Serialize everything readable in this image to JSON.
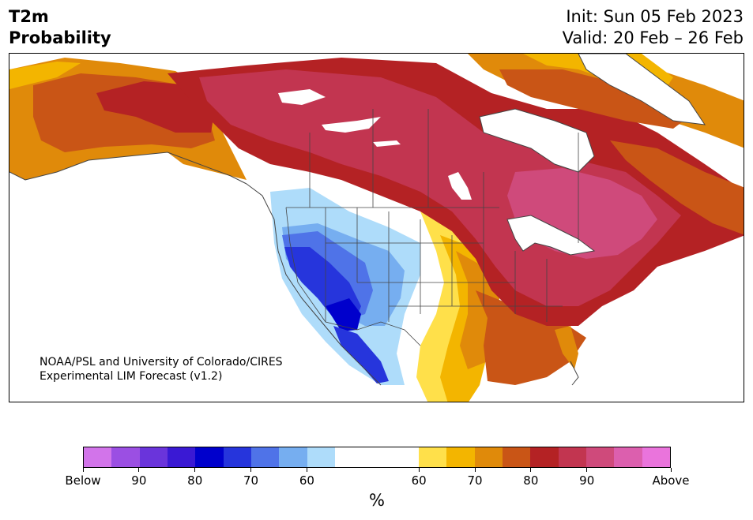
{
  "header": {
    "title_line1": "T2m",
    "title_line2": "Probability",
    "init": "Init: Sun 05 Feb 2023",
    "valid": "Valid: 20 Feb – 26 Feb"
  },
  "map": {
    "credit_line1": "NOAA/PSL and University of Colorado/CIRES",
    "credit_line2": "Experimental LIM Forecast (v1.2)"
  },
  "colorbar": {
    "unit": "%",
    "below_colors": [
      "#d274ea",
      "#9b4fe3",
      "#6a34db",
      "#3a19d4",
      "#0000cc",
      "#2635dc",
      "#4f73e8",
      "#76aef0",
      "#aedcfa"
    ],
    "neutral_color": "#ffffff",
    "above_colors": [
      "#ffe04a",
      "#f3b500",
      "#e08a0a",
      "#c95516",
      "#b42224",
      "#c23550",
      "#cf4a7b",
      "#dc5fae",
      "#ea74dc"
    ],
    "ticks": [
      {
        "label": "Below"
      },
      {
        "label": "90"
      },
      {
        "label": "80"
      },
      {
        "label": "70"
      },
      {
        "label": "60"
      },
      {
        "label": "60"
      },
      {
        "label": "70"
      },
      {
        "label": "80"
      },
      {
        "label": "90"
      },
      {
        "label": "Above"
      }
    ]
  }
}
